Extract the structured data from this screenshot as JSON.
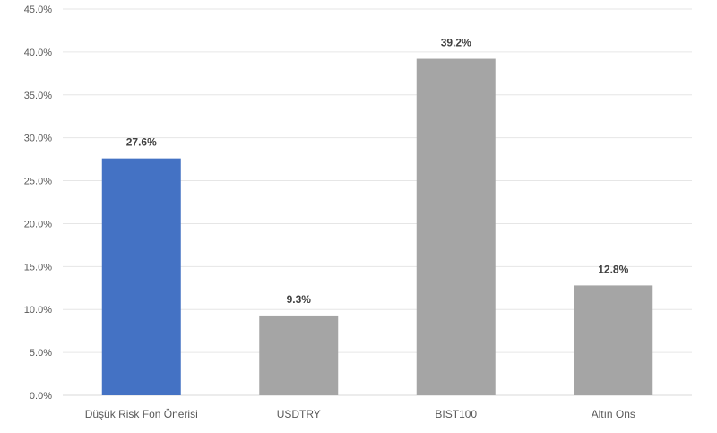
{
  "chart_data": {
    "type": "bar",
    "title": "",
    "xlabel": "",
    "ylabel": "",
    "categories": [
      "Düşük Risk Fon Önerisi",
      "USDTRY",
      "BIST100",
      "Altın Ons"
    ],
    "values": [
      27.6,
      9.3,
      39.2,
      12.8
    ],
    "data_labels": [
      "27.6%",
      "9.3%",
      "39.2%",
      "12.8%"
    ],
    "bar_colors": [
      "#4472c4",
      "#a5a5a5",
      "#a5a5a5",
      "#a5a5a5"
    ],
    "ylim": [
      0,
      45
    ],
    "yticks": [
      0,
      5,
      10,
      15,
      20,
      25,
      30,
      35,
      40,
      45
    ],
    "ytick_labels": [
      "0.0%",
      "5.0%",
      "10.0%",
      "15.0%",
      "20.0%",
      "25.0%",
      "30.0%",
      "35.0%",
      "40.0%",
      "45.0%"
    ],
    "grid": true,
    "legend": "none"
  }
}
